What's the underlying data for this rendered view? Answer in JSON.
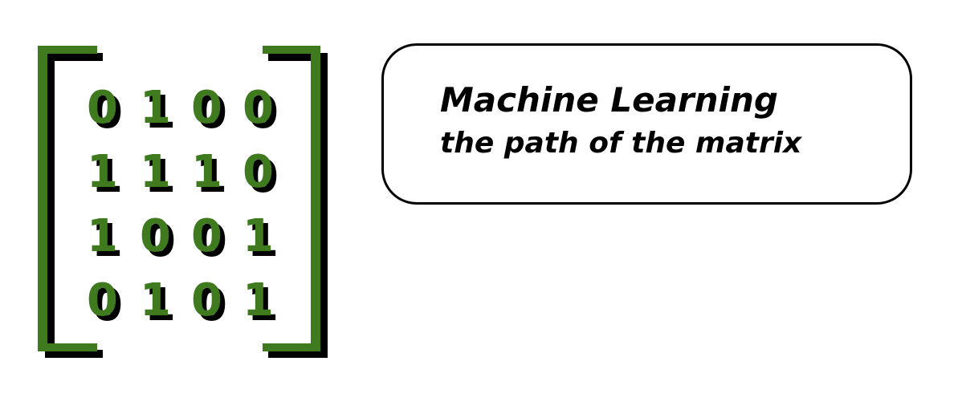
{
  "matrix": {
    "rows": [
      [
        "0",
        "1",
        "0",
        "0"
      ],
      [
        "1",
        "1",
        "1",
        "0"
      ],
      [
        "1",
        "0",
        "0",
        "1"
      ],
      [
        "0",
        "1",
        "0",
        "1"
      ]
    ]
  },
  "label": {
    "title": "Machine Learning",
    "subtitle": "the path of the matrix"
  },
  "colors": {
    "accent": "#3f7a1e",
    "shadow": "#000000",
    "background": "#ffffff"
  }
}
